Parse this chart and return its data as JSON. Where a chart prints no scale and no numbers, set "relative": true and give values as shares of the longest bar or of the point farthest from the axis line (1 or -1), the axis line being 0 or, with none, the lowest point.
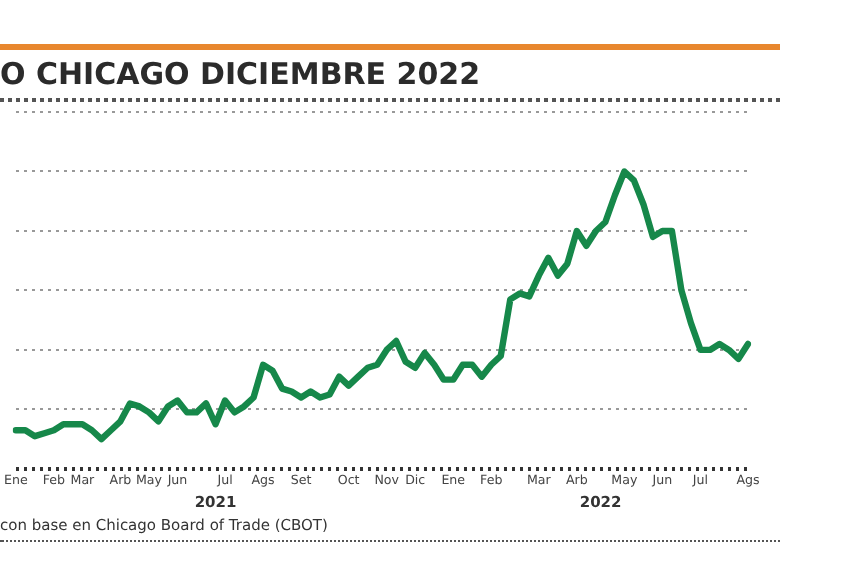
{
  "chart_data": {
    "type": "line",
    "title": "O CHICAGO DICIEMBRE 2022",
    "annotations": [
      "2021",
      "2022",
      "con base en Chicago Board of Trade (CBOT)"
    ],
    "relative": true,
    "grid": "y",
    "legend": false,
    "marker": "none",
    "line_style": "solid",
    "categories": [
      "Ene",
      null,
      null,
      null,
      "Feb",
      null,
      null,
      "Mar",
      null,
      null,
      null,
      "Arb",
      null,
      null,
      "May",
      null,
      null,
      "Jun",
      null,
      null,
      null,
      null,
      "Jul",
      null,
      null,
      null,
      "Ags",
      null,
      null,
      null,
      "Set",
      null,
      null,
      null,
      null,
      "Oct",
      null,
      null,
      null,
      "Nov",
      null,
      null,
      "Dic",
      null,
      null,
      null,
      "Ene",
      null,
      null,
      null,
      "Feb",
      null,
      null,
      null,
      null,
      "Mar",
      null,
      null,
      null,
      "Arb",
      null,
      null,
      null,
      null,
      "May",
      null,
      null,
      null,
      "Jun",
      null,
      null,
      null,
      "Jul",
      null,
      null,
      null,
      null,
      "Ags"
    ],
    "series": [
      {
        "color": "#16884a",
        "values": [
          0.13,
          0.13,
          0.11,
          0.12,
          0.13,
          0.15,
          0.15,
          0.15,
          0.13,
          0.1,
          0.13,
          0.16,
          0.22,
          0.21,
          0.19,
          0.16,
          0.21,
          0.23,
          0.19,
          0.19,
          0.22,
          0.15,
          0.23,
          0.19,
          0.21,
          0.24,
          0.35,
          0.33,
          0.27,
          0.26,
          0.24,
          0.26,
          0.24,
          0.25,
          0.31,
          0.28,
          0.31,
          0.34,
          0.35,
          0.4,
          0.43,
          0.36,
          0.34,
          0.39,
          0.35,
          0.3,
          0.3,
          0.35,
          0.35,
          0.31,
          0.35,
          0.38,
          0.57,
          0.59,
          0.58,
          0.65,
          0.71,
          0.65,
          0.69,
          0.8,
          0.75,
          0.8,
          0.83,
          0.92,
          1,
          0.97,
          0.89,
          0.78,
          0.8,
          0.8,
          0.6,
          0.49,
          0.4,
          0.4,
          0.42,
          0.4,
          0.37,
          0.42
        ]
      }
    ]
  }
}
